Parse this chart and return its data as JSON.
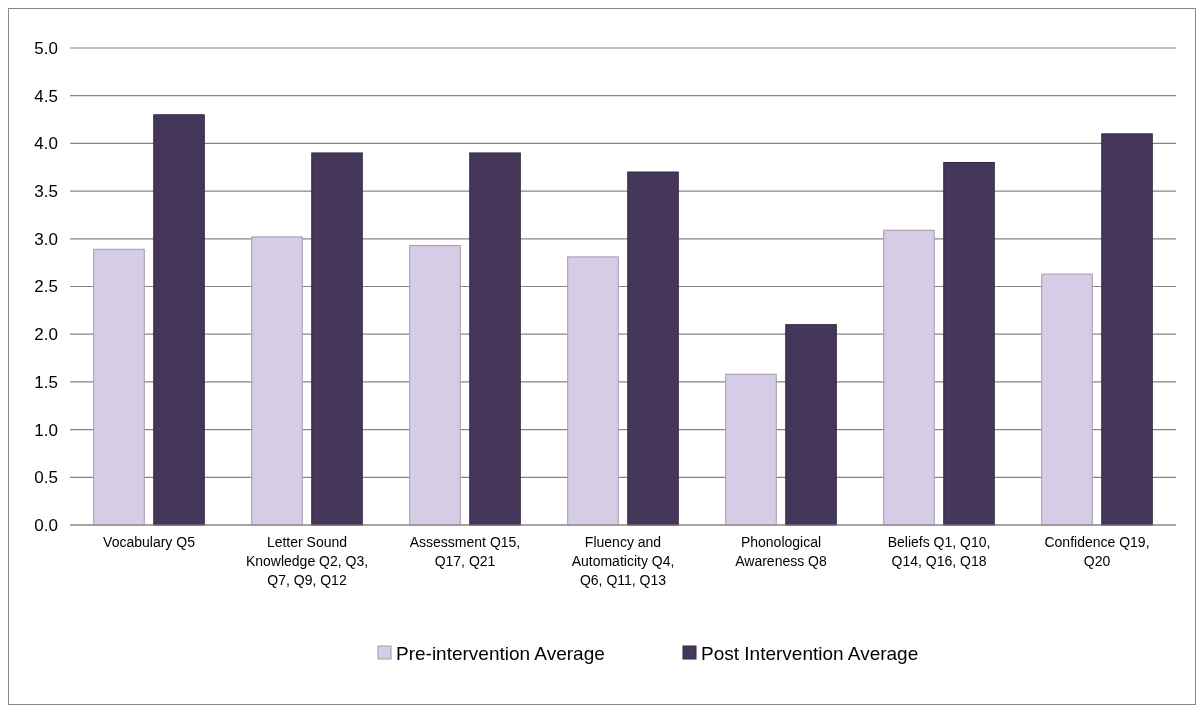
{
  "chart_data": {
    "type": "bar",
    "categories": [
      "Vocabulary Q5",
      "Letter Sound Knowledge Q2, Q3, Q7, Q9, Q12",
      "Assessment Q15, Q17, Q21",
      "Fluency and Automaticity Q4, Q6, Q11, Q13",
      "Phonological Awareness Q8",
      "Beliefs Q1, Q10, Q14, Q16, Q18",
      "Confidence Q19, Q20"
    ],
    "series": [
      {
        "name": "Pre-intervention Average",
        "color": "#d6cce6",
        "values": [
          2.89,
          3.02,
          2.93,
          2.81,
          1.58,
          3.09,
          2.63
        ]
      },
      {
        "name": "Post Intervention Average",
        "color": "#45375a",
        "values": [
          4.3,
          3.9,
          3.9,
          3.7,
          2.1,
          3.8,
          4.1
        ]
      }
    ],
    "ylim": [
      0,
      5
    ],
    "yticks": [
      {
        "value": 0,
        "label": "0.0"
      },
      {
        "value": 0.5,
        "label": "0.5"
      },
      {
        "value": 1,
        "label": "1.0"
      },
      {
        "value": 1.5,
        "label": "1.5"
      },
      {
        "value": 2,
        "label": "2.0"
      },
      {
        "value": 2.5,
        "label": "2.5"
      },
      {
        "value": 3,
        "label": "3.0"
      },
      {
        "value": 3.5,
        "label": "3.5"
      },
      {
        "value": 4,
        "label": "4.0"
      },
      {
        "value": 4.5,
        "label": "4.5"
      },
      {
        "value": 5,
        "label": "5.0"
      }
    ],
    "grid": "y",
    "legend": "bottom"
  }
}
